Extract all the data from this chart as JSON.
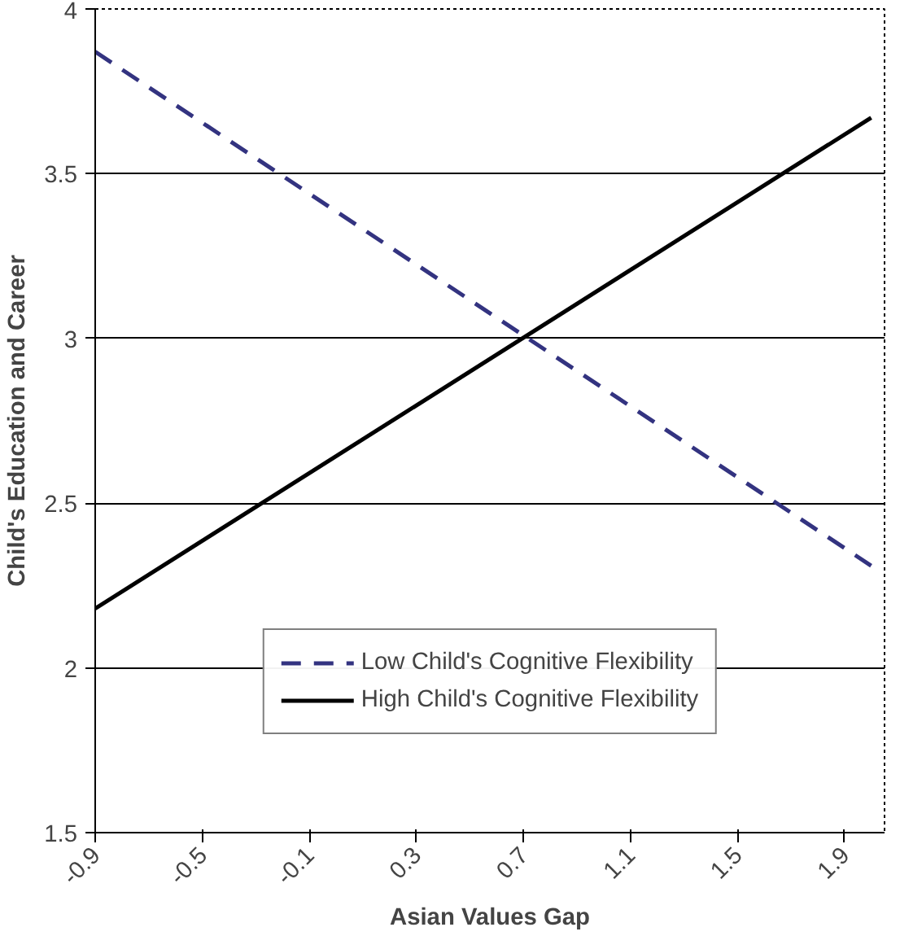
{
  "chart_data": {
    "type": "line",
    "xlabel": "Asian Values Gap",
    "ylabel": "Child's Education and Career",
    "x": [
      -0.9,
      2.0
    ],
    "series": [
      {
        "name": "Low Child's Cognitive Flexibility",
        "color": "#333380",
        "values": [
          3.87,
          2.31
        ],
        "line_style": "dashed"
      },
      {
        "name": "High Child's Cognitive Flexibility",
        "color": "#000000",
        "values": [
          2.18,
          3.67
        ],
        "line_style": "solid"
      }
    ],
    "xlim": [
      -0.9,
      2.05
    ],
    "xticks": [
      -0.9,
      -0.5,
      -0.1,
      0.3,
      0.7,
      1.1,
      1.5,
      1.9
    ],
    "ylim": [
      1.5,
      4
    ],
    "yticks": [
      1.5,
      2,
      2.5,
      3,
      3.5,
      4
    ],
    "grid": "y",
    "legend": "bottom",
    "marker": "none"
  }
}
